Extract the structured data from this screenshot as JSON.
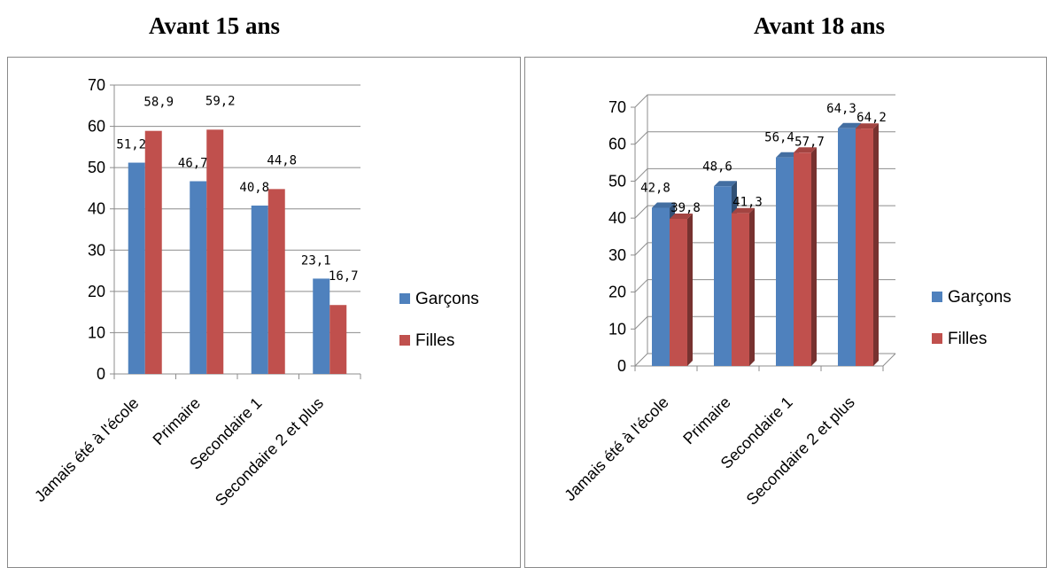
{
  "chart_data": [
    {
      "type": "bar",
      "title": "Avant 15 ans",
      "categories": [
        "Jamais été à l'école",
        "Primaire",
        "Secondaire 1",
        "Secondaire 2 et plus"
      ],
      "series": [
        {
          "name": "Garçons",
          "values": [
            51.2,
            46.7,
            40.8,
            23.1
          ],
          "labels": [
            "51,2",
            "46,7",
            "40,8",
            "23,1"
          ],
          "color": "#4f81bd"
        },
        {
          "name": "Filles",
          "values": [
            58.9,
            59.2,
            44.8,
            16.7
          ],
          "labels": [
            "58,9",
            "59,2",
            "44,8",
            "16,7"
          ],
          "color": "#c0504d"
        }
      ],
      "ylim": [
        0,
        70
      ],
      "yticks": [
        0,
        10,
        20,
        30,
        40,
        50,
        60,
        70
      ],
      "grid": true,
      "legend": "right",
      "style": "2d"
    },
    {
      "type": "bar",
      "title": "Avant 18 ans",
      "categories": [
        "Jamais été à l'école",
        "Primaire",
        "Secondaire 1",
        "Secondaire 2 et plus"
      ],
      "series": [
        {
          "name": "Garçons",
          "values": [
            42.8,
            48.6,
            56.4,
            64.3
          ],
          "labels": [
            "42,8",
            "48,6",
            "56,4",
            "64,3"
          ],
          "color": "#4f81bd"
        },
        {
          "name": "Filles",
          "values": [
            39.8,
            41.3,
            57.7,
            64.2
          ],
          "labels": [
            "39,8",
            "41,3",
            "57,7",
            "64,2"
          ],
          "color": "#c0504d"
        }
      ],
      "ylim": [
        0,
        70
      ],
      "yticks": [
        0,
        10,
        20,
        30,
        40,
        50,
        60,
        70
      ],
      "grid": true,
      "legend": "right",
      "style": "3d"
    }
  ]
}
